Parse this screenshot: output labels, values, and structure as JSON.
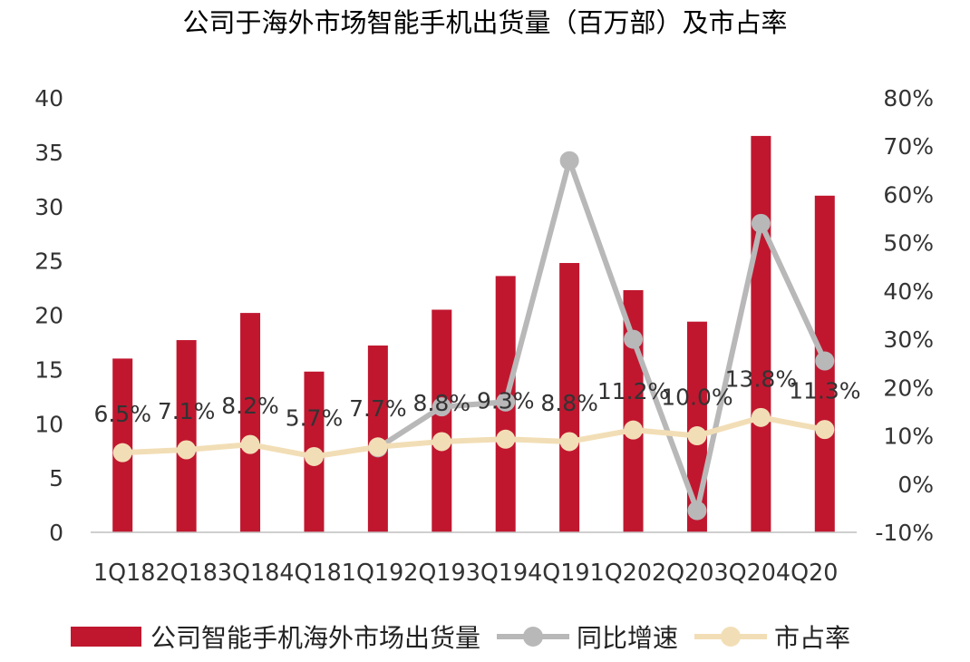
{
  "chart_data": {
    "type": "bar",
    "title": "公司于海外市场智能手机出货量（百万部）及市占率",
    "categories": [
      "1Q18",
      "2Q18",
      "3Q18",
      "4Q18",
      "1Q19",
      "2Q19",
      "3Q19",
      "4Q19",
      "1Q20",
      "2Q20",
      "3Q20",
      "4Q20"
    ],
    "x_tick_text": "1Q182Q183Q184Q181Q192Q193Q194Q191Q202Q203Q204Q20",
    "y_left": {
      "min": 0,
      "max": 40,
      "ticks": [
        "0",
        "5",
        "10",
        "15",
        "20",
        "25",
        "30",
        "35",
        "40"
      ]
    },
    "y_right": {
      "min": -10,
      "max": 80,
      "ticks": [
        "-10%",
        "0%",
        "10%",
        "20%",
        "30%",
        "40%",
        "50%",
        "60%",
        "70%",
        "80%"
      ]
    },
    "series": [
      {
        "name": "公司智能手机海外市场出货量",
        "type": "bar",
        "axis": "left",
        "color": "#c0172f",
        "values": [
          16.0,
          17.7,
          20.2,
          14.8,
          17.2,
          20.5,
          23.6,
          24.8,
          22.3,
          19.4,
          36.5,
          31.0
        ]
      },
      {
        "name": "同比增速",
        "type": "line",
        "axis": "right",
        "color": "#b8b8b8",
        "values": [
          null,
          null,
          null,
          null,
          7.5,
          16.0,
          17.0,
          67.0,
          30.0,
          -5.5,
          54.0,
          25.5
        ]
      },
      {
        "name": "市占率",
        "type": "line",
        "axis": "right",
        "color": "#f2deb6",
        "values": [
          6.5,
          7.1,
          8.2,
          5.7,
          7.7,
          8.8,
          9.3,
          8.8,
          11.2,
          10.0,
          13.8,
          11.3
        ],
        "labels": [
          "6.5%",
          "7.1%",
          "8.2%",
          "5.7%",
          "7.7%",
          "8.8%",
          "9.3%",
          "8.8%",
          "11.2%",
          "10.0%",
          "13.8%",
          "11.3%"
        ]
      }
    ],
    "legend_position": "bottom",
    "grid": false
  }
}
